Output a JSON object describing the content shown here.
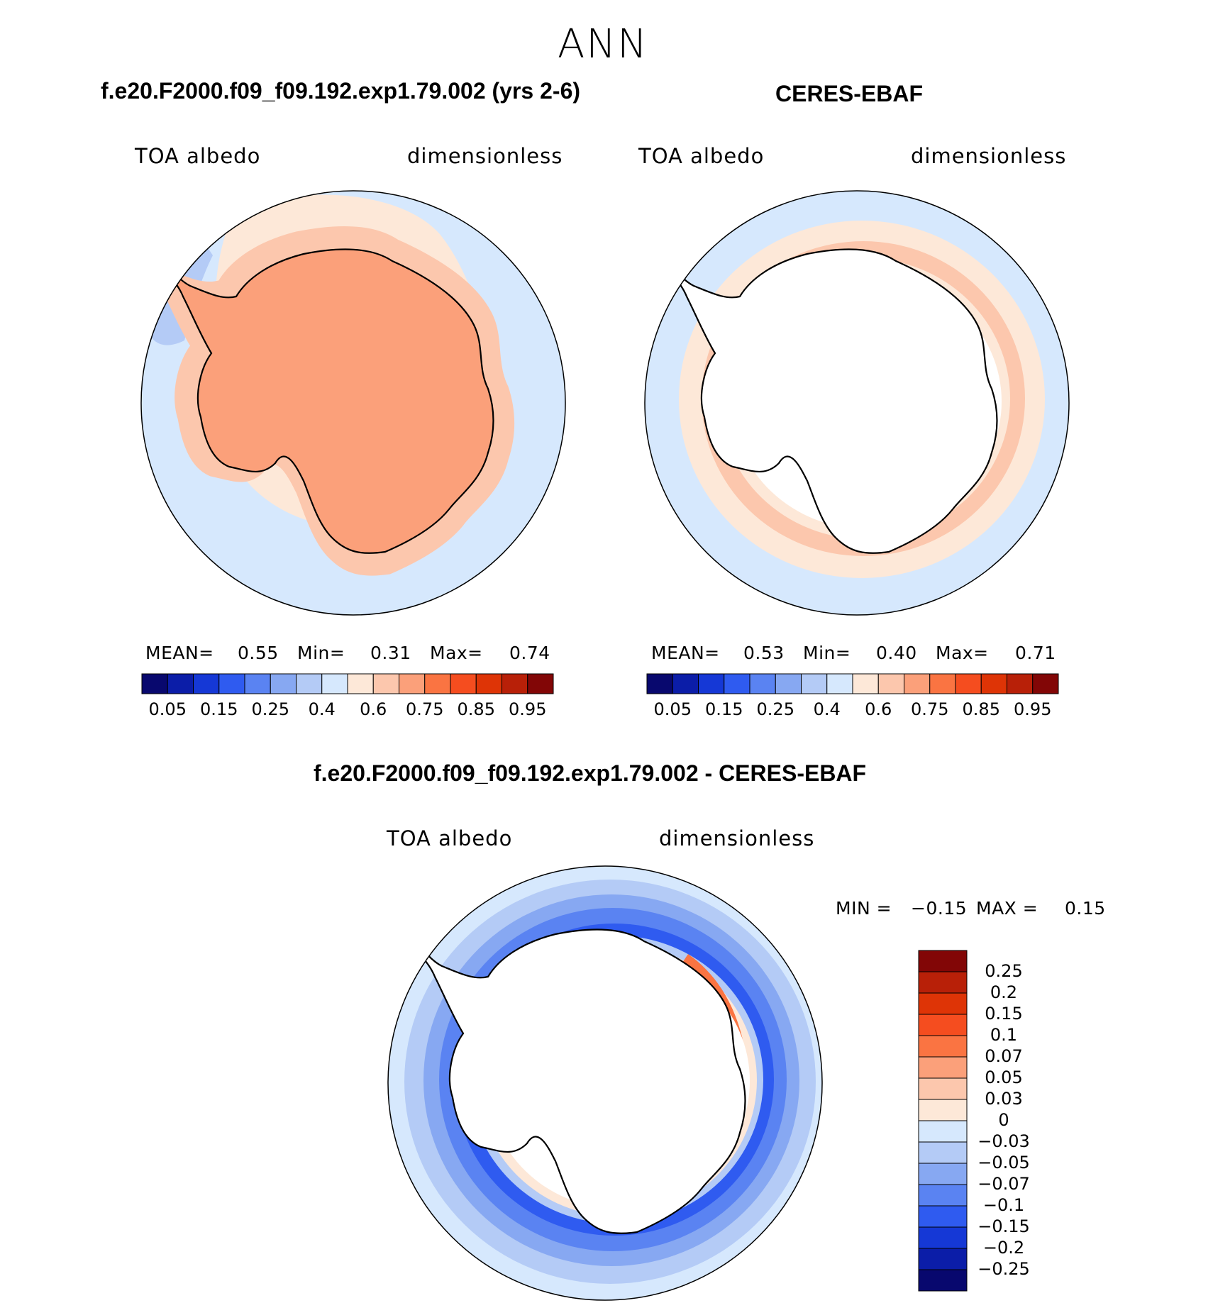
{
  "main_title": "ANN",
  "panels": {
    "model": {
      "title": "f.e20.F2000.f09_f09.192.exp1.79.002 (yrs 2-6)",
      "variable": "TOA albedo",
      "units": "dimensionless",
      "mean_label": "MEAN=",
      "mean": "0.55",
      "min_label": "Min=",
      "min": "0.31",
      "max_label": "Max=",
      "max": "0.74"
    },
    "obs": {
      "title": "CERES-EBAF",
      "variable": "TOA albedo",
      "units": "dimensionless",
      "mean_label": "MEAN=",
      "mean": "0.53",
      "min_label": "Min=",
      "min": "0.40",
      "max_label": "Max=",
      "max": "0.71"
    },
    "diff": {
      "title": "f.e20.F2000.f09_f09.192.exp1.79.002 - CERES-EBAF",
      "variable": "TOA albedo",
      "units": "dimensionless",
      "min_label": "MIN =",
      "min": "−0.15",
      "max_label": "MAX =",
      "max": "0.15"
    }
  },
  "colorbars": {
    "abs_colors": [
      "#08086e",
      "#0b1da8",
      "#1538d6",
      "#2f5bf0",
      "#5a83f2",
      "#87a8f2",
      "#b4cbf6",
      "#d6e8fd",
      "#fde8d8",
      "#fcc7ad",
      "#fba07a",
      "#fa7442",
      "#f54d1f",
      "#de3406",
      "#b82008",
      "#820606"
    ],
    "abs_ticks": [
      "0.05",
      "0.15",
      "0.25",
      "0.4",
      "0.6",
      "0.75",
      "0.85",
      "0.95"
    ],
    "diff_colors": [
      "#820606",
      "#b82008",
      "#de3406",
      "#f54d1f",
      "#fa7442",
      "#fba07a",
      "#fcc7ad",
      "#fde8d8",
      "#d6e8fd",
      "#b4cbf6",
      "#87a8f2",
      "#5a83f2",
      "#2f5bf0",
      "#1538d6",
      "#0b1da8",
      "#08086e"
    ],
    "diff_ticks": [
      "0.25",
      "0.2",
      "0.15",
      "0.1",
      "0.07",
      "0.05",
      "0.03",
      "0",
      "−0.03",
      "−0.05",
      "−0.07",
      "−0.1",
      "−0.15",
      "−0.2",
      "−0.25"
    ]
  },
  "field_colors": {
    "land": "#ffffff",
    "coastline": "#000000",
    "ocean_low": "#d6e8fd",
    "abs_level_1": "#fde8d8",
    "abs_level_2": "#fcc7ad",
    "abs_level_3": "#fba07a",
    "abs_low": "#b4cbf6",
    "diff_neg_1": "#b4cbf6",
    "diff_neg_2": "#87a8f2",
    "diff_neg_3": "#5a83f2",
    "diff_neg_4": "#2f5bf0",
    "diff_pos_1": "#fcc7ad",
    "diff_pos_2": "#fa7442"
  }
}
